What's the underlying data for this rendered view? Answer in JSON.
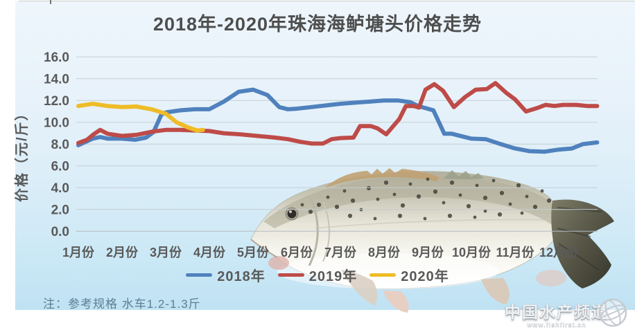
{
  "page": {
    "note": "注：参考规格  水车1.2-1.3斤",
    "watermark": {
      "name": "中国水产频道",
      "url": "www.fishfirst.cn"
    }
  },
  "chart_data": {
    "type": "line",
    "title": "2018年-2020年珠海海鲈塘头价格走势",
    "xlabel": "",
    "ylabel": "价格（元/斤）",
    "ylim": [
      0,
      16
    ],
    "y_tick_step": 2,
    "y_ticks": [
      "0.0",
      "2.0",
      "4.0",
      "6.0",
      "8.0",
      "10.0",
      "12.0",
      "14.0",
      "16.0"
    ],
    "categories": [
      "1月份",
      "2月份",
      "3月份",
      "4月份",
      "5月份",
      "6月份",
      "7月份",
      "8月份",
      "9月份",
      "10月份",
      "11月份",
      "12月份"
    ],
    "grid": true,
    "legend_position": "bottom",
    "x_unit": "month (fractional x = intra-month weekly points)",
    "series": [
      {
        "name": "2018年",
        "color": "#4F81BD",
        "points": [
          [
            1.0,
            7.9
          ],
          [
            1.33,
            8.5
          ],
          [
            1.5,
            8.65
          ],
          [
            1.67,
            8.5
          ],
          [
            2.0,
            8.5
          ],
          [
            2.3,
            8.4
          ],
          [
            2.55,
            8.6
          ],
          [
            2.72,
            9.1
          ],
          [
            2.9,
            10.7
          ],
          [
            3.0,
            10.9
          ],
          [
            3.33,
            11.1
          ],
          [
            3.67,
            11.2
          ],
          [
            4.0,
            11.2
          ],
          [
            4.33,
            11.9
          ],
          [
            4.67,
            12.8
          ],
          [
            5.0,
            13.0
          ],
          [
            5.33,
            12.5
          ],
          [
            5.6,
            11.4
          ],
          [
            5.8,
            11.2
          ],
          [
            6.0,
            11.25
          ],
          [
            6.33,
            11.4
          ],
          [
            6.67,
            11.55
          ],
          [
            7.0,
            11.7
          ],
          [
            7.33,
            11.8
          ],
          [
            7.67,
            11.9
          ],
          [
            8.0,
            12.0
          ],
          [
            8.33,
            12.0
          ],
          [
            8.6,
            11.85
          ],
          [
            8.78,
            11.5
          ],
          [
            8.95,
            11.3
          ],
          [
            9.13,
            11.1
          ],
          [
            9.38,
            8.95
          ],
          [
            9.55,
            8.95
          ],
          [
            9.8,
            8.7
          ],
          [
            10.0,
            8.5
          ],
          [
            10.33,
            8.45
          ],
          [
            10.67,
            8.0
          ],
          [
            11.0,
            7.6
          ],
          [
            11.33,
            7.35
          ],
          [
            11.67,
            7.3
          ],
          [
            12.0,
            7.5
          ],
          [
            12.3,
            7.6
          ],
          [
            12.55,
            8.0
          ],
          [
            12.88,
            8.15
          ]
        ]
      },
      {
        "name": "2019年",
        "color": "#BE4B48",
        "points": [
          [
            1.0,
            8.1
          ],
          [
            1.2,
            8.4
          ],
          [
            1.35,
            8.9
          ],
          [
            1.5,
            9.3
          ],
          [
            1.67,
            8.95
          ],
          [
            2.0,
            8.75
          ],
          [
            2.33,
            8.85
          ],
          [
            2.7,
            9.15
          ],
          [
            3.0,
            9.3
          ],
          [
            3.33,
            9.3
          ],
          [
            3.67,
            9.25
          ],
          [
            4.0,
            9.2
          ],
          [
            4.33,
            9.0
          ],
          [
            4.7,
            8.9
          ],
          [
            5.1,
            8.75
          ],
          [
            5.5,
            8.6
          ],
          [
            5.8,
            8.45
          ],
          [
            6.1,
            8.2
          ],
          [
            6.35,
            8.05
          ],
          [
            6.6,
            8.05
          ],
          [
            6.8,
            8.45
          ],
          [
            7.0,
            8.55
          ],
          [
            7.3,
            8.6
          ],
          [
            7.45,
            9.65
          ],
          [
            7.7,
            9.65
          ],
          [
            7.85,
            9.45
          ],
          [
            8.05,
            8.9
          ],
          [
            8.2,
            9.6
          ],
          [
            8.35,
            10.3
          ],
          [
            8.5,
            11.5
          ],
          [
            8.68,
            11.5
          ],
          [
            8.8,
            11.35
          ],
          [
            8.95,
            13.0
          ],
          [
            9.15,
            13.5
          ],
          [
            9.35,
            12.9
          ],
          [
            9.6,
            11.4
          ],
          [
            9.85,
            12.3
          ],
          [
            10.1,
            13.0
          ],
          [
            10.35,
            13.05
          ],
          [
            10.55,
            13.6
          ],
          [
            10.8,
            12.7
          ],
          [
            11.0,
            12.1
          ],
          [
            11.25,
            11.0
          ],
          [
            11.5,
            11.3
          ],
          [
            11.7,
            11.6
          ],
          [
            11.9,
            11.5
          ],
          [
            12.1,
            11.6
          ],
          [
            12.4,
            11.6
          ],
          [
            12.65,
            11.5
          ],
          [
            12.88,
            11.5
          ]
        ]
      },
      {
        "name": "2020年",
        "color": "#EFBC27",
        "points": [
          [
            1.0,
            11.5
          ],
          [
            1.33,
            11.7
          ],
          [
            1.67,
            11.5
          ],
          [
            2.0,
            11.4
          ],
          [
            2.33,
            11.45
          ],
          [
            2.67,
            11.2
          ],
          [
            3.0,
            10.8
          ],
          [
            3.25,
            10.0
          ],
          [
            3.5,
            9.55
          ],
          [
            3.72,
            9.25
          ],
          [
            3.85,
            9.3
          ]
        ]
      }
    ]
  }
}
